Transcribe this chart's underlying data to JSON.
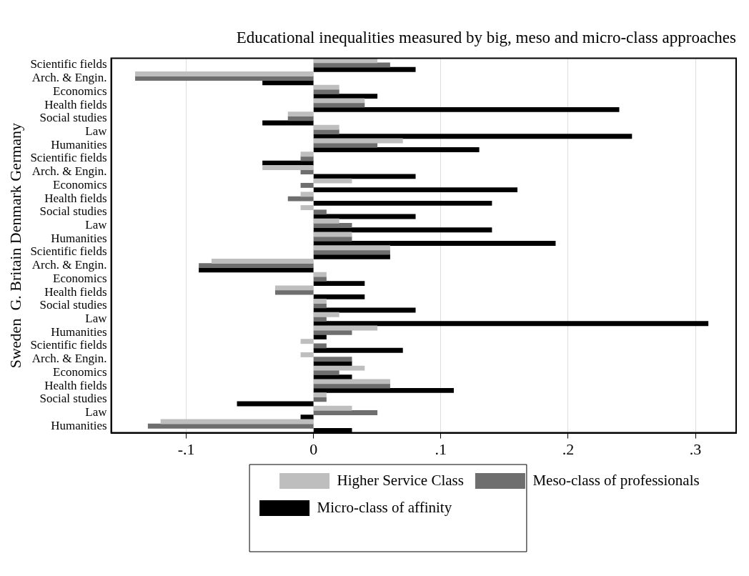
{
  "chart_data": {
    "type": "bar",
    "orientation": "horizontal",
    "title": "Educational inequalities measured by big, meso and micro-class approaches",
    "ylabel": "Sweden  G. Britain Denmark Germany",
    "categories": [
      "Scientific fields",
      "Arch. & Engin.",
      "Economics",
      "Health fields",
      "Social studies",
      "Law",
      "Humanities",
      "Scientific fields",
      "Arch. & Engin.",
      "Economics",
      "Health fields",
      "Social studies",
      "Law",
      "Humanities",
      "Scientific fields",
      "Arch. & Engin.",
      "Economics",
      "Health fields",
      "Social studies",
      "Law",
      "Humanities",
      "Scientific fields",
      "Arch. & Engin.",
      "Economics",
      "Health fields",
      "Social studies",
      "Law",
      "Humanities"
    ],
    "series": [
      {
        "name": "Higher Service Class",
        "color": "#bebebe",
        "values": [
          0.05,
          -0.14,
          0.02,
          0.04,
          -0.02,
          0.02,
          0.07,
          -0.01,
          -0.04,
          0.03,
          -0.01,
          -0.01,
          0.02,
          0.03,
          0.06,
          -0.08,
          0.01,
          -0.03,
          0.01,
          0.02,
          0.05,
          -0.01,
          -0.01,
          0.04,
          0.06,
          0.01,
          0.03,
          -0.12
        ]
      },
      {
        "name": "Meso-class of professionals",
        "color": "#6e6e6e",
        "values": [
          0.06,
          -0.14,
          0.02,
          0.04,
          -0.02,
          0.02,
          0.05,
          -0.01,
          -0.01,
          -0.01,
          -0.02,
          0.01,
          0.03,
          0.03,
          0.06,
          -0.09,
          0.01,
          -0.03,
          0.01,
          0.01,
          0.03,
          0.01,
          0.03,
          0.02,
          0.06,
          0.01,
          0.05,
          -0.13
        ]
      },
      {
        "name": "Micro-class of affinity",
        "color": "#000000",
        "values": [
          0.08,
          -0.04,
          0.05,
          0.24,
          -0.04,
          0.25,
          0.13,
          -0.04,
          0.08,
          0.16,
          0.14,
          0.08,
          0.14,
          0.19,
          0.06,
          -0.09,
          0.04,
          0.04,
          0.08,
          0.31,
          0.01,
          0.07,
          0.03,
          0.03,
          0.11,
          -0.06,
          -0.01,
          0.03
        ]
      }
    ],
    "xlim": [
      -0.159,
      0.332
    ],
    "xticks": [
      {
        "value": -0.1,
        "label": "-.1"
      },
      0,
      {
        "value": 0.1,
        "label": ".1"
      },
      {
        "value": 0.2,
        "label": ".2"
      },
      {
        "value": 0.3,
        "label": ".3"
      }
    ],
    "grid": "x",
    "legend": "bottom"
  }
}
